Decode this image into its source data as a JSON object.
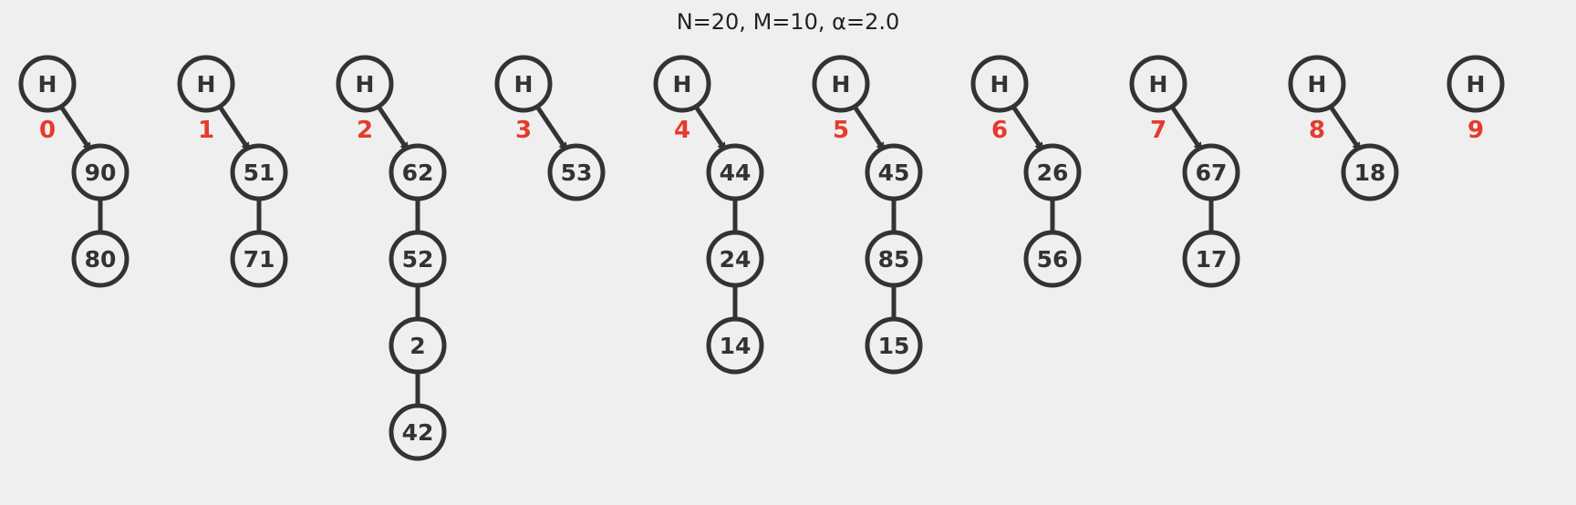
{
  "title": "N=20, M=10, α=2.0",
  "head_label": "H",
  "buckets": [
    {
      "index": "0",
      "items": [
        "90",
        "80"
      ]
    },
    {
      "index": "1",
      "items": [
        "51",
        "71"
      ]
    },
    {
      "index": "2",
      "items": [
        "62",
        "52",
        "2",
        "42"
      ]
    },
    {
      "index": "3",
      "items": [
        "53"
      ]
    },
    {
      "index": "4",
      "items": [
        "44",
        "24",
        "14"
      ]
    },
    {
      "index": "5",
      "items": [
        "45",
        "85",
        "15"
      ]
    },
    {
      "index": "6",
      "items": [
        "26",
        "56"
      ]
    },
    {
      "index": "7",
      "items": [
        "67",
        "17"
      ]
    },
    {
      "index": "8",
      "items": [
        "18"
      ]
    },
    {
      "index": "9",
      "items": []
    }
  ]
}
